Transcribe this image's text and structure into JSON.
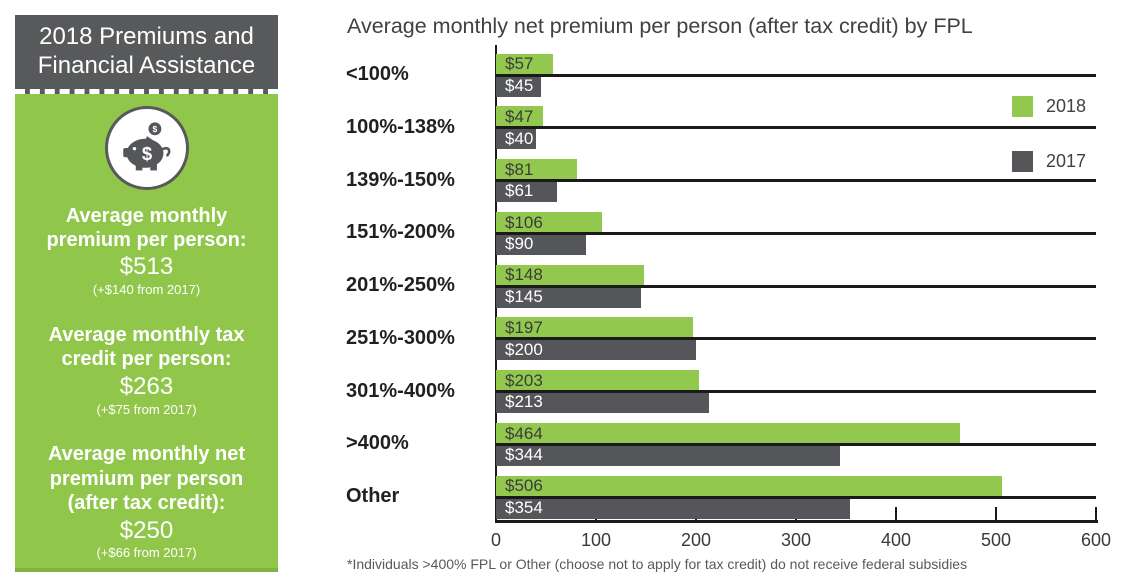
{
  "sidebar": {
    "title": "2018 Premiums and Financial Assistance",
    "icon": "piggy-bank-icon",
    "sections": [
      {
        "heading": "Average monthly premium per person:",
        "value": "$513",
        "note": "(+$140 from 2017)"
      },
      {
        "heading": "Average monthly tax credit per person:",
        "value": "$263",
        "note": "(+$75 from 2017)"
      },
      {
        "heading": "Average monthly net premium per person (after tax credit):",
        "value": "$250",
        "note": "(+$66 from 2017)"
      }
    ]
  },
  "chart_data": {
    "type": "bar",
    "orientation": "horizontal",
    "title": "Average monthly net premium per person (after tax credit) by FPL",
    "categories": [
      "<100%",
      "100%-138%",
      "139%-150%",
      "151%-200%",
      "201%-250%",
      "251%-300%",
      "301%-400%",
      ">400%",
      "Other"
    ],
    "series": [
      {
        "name": "2018",
        "color": "#93C84F",
        "label_color": "#3B3B3D",
        "values": [
          57,
          47,
          81,
          106,
          148,
          197,
          203,
          464,
          506
        ],
        "labels": [
          "$57",
          "$47",
          "$81",
          "$106",
          "$148",
          "$197",
          "$203",
          "$464",
          "$506"
        ]
      },
      {
        "name": "2017",
        "color": "#55565A",
        "label_color": "#FFFFFF",
        "values": [
          45,
          40,
          61,
          90,
          145,
          200,
          213,
          344,
          354
        ],
        "labels": [
          "$45",
          "$40",
          "$61",
          "$90",
          "$145",
          "$200",
          "$213",
          "$344",
          "$354"
        ]
      }
    ],
    "xlim": [
      0,
      600
    ],
    "x_ticks": [
      0,
      100,
      200,
      300,
      400,
      500,
      600
    ],
    "legend_position": "upper right",
    "grid": "horizontal category separator lines",
    "footnote": "*Individuals >400% FPL or Other (choose not to apply for tax credit) do not receive federal subsidies"
  },
  "colors": {
    "sidebar_green": "#90C74B",
    "bar_green": "#93C84F",
    "header_gray": "#58595B",
    "bar_gray": "#55565A",
    "line_black": "#1A1A1A",
    "title_gray": "#414042",
    "category_black": "#231F20",
    "footnote_gray": "#58595B"
  }
}
